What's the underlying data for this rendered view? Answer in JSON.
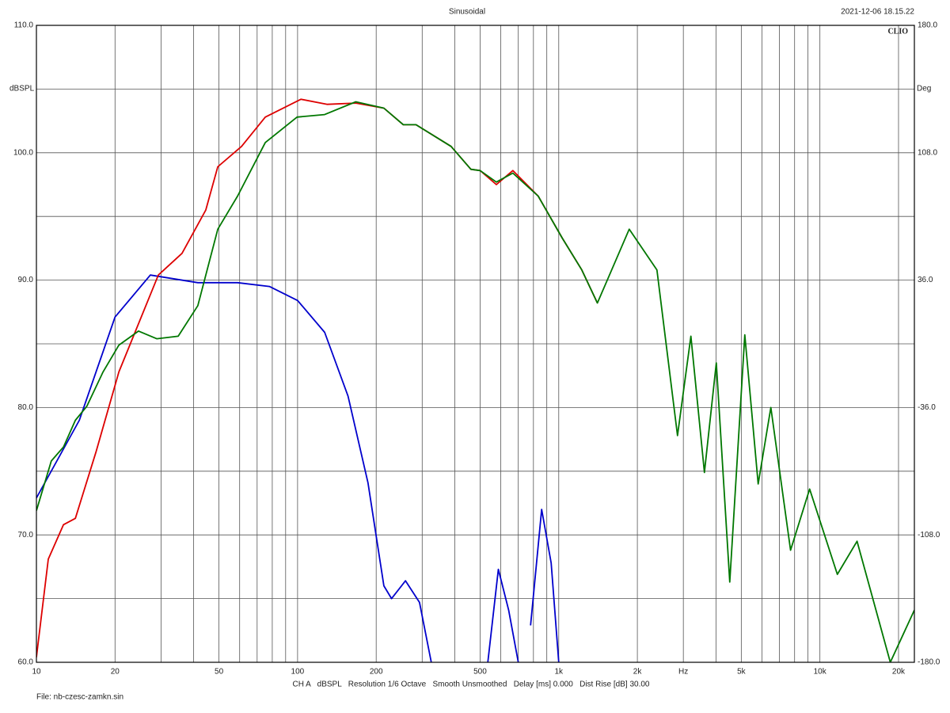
{
  "chart_data": {
    "type": "line",
    "title": "Sinusoidal",
    "timestamp": "2021-12-06 18.15.22",
    "brand": "CLIO",
    "y_label": "dBSPL",
    "y2_label": "Deg",
    "footer": "CH A   dBSPL   Resolution 1/6 Octave   Smooth Unsmoothed   Delay [ms] 0.000   Dist Rise [dB] 30.00",
    "file": "File: nb-czesc-zamkn.sin",
    "xscale": "log",
    "xlim": [
      10,
      23000
    ],
    "ylim": [
      60,
      110
    ],
    "y2lim": [
      -180,
      180
    ],
    "grid": true,
    "xticks": [
      10,
      20,
      50,
      100,
      200,
      500,
      {
        "value": 1000,
        "label": "1k"
      },
      {
        "value": 2000,
        "label": "2k"
      },
      {
        "value": 3000,
        "label": "Hz"
      },
      {
        "value": 5000,
        "label": "5k"
      },
      {
        "value": 10000,
        "label": "10k"
      },
      {
        "value": 20000,
        "label": "20k"
      }
    ],
    "xgrid": [
      10,
      20,
      30,
      40,
      50,
      60,
      70,
      80,
      90,
      100,
      200,
      300,
      400,
      500,
      600,
      700,
      800,
      900,
      1000,
      2000,
      3000,
      4000,
      5000,
      6000,
      7000,
      8000,
      9000,
      10000,
      20000
    ],
    "yticks": [
      {
        "value": 60,
        "label": "60.0"
      },
      {
        "value": 70,
        "label": "70.0"
      },
      {
        "value": 80,
        "label": "80.0"
      },
      {
        "value": 90,
        "label": "90.0"
      },
      {
        "value": 100,
        "label": "100.0"
      },
      {
        "value": 110,
        "label": "110.0"
      }
    ],
    "ygrid": [
      65,
      75,
      85,
      95,
      105
    ],
    "y2ticks": [
      {
        "value": 180,
        "label": "180.0"
      },
      {
        "value": 108,
        "label": "108.0"
      },
      {
        "value": 36,
        "label": "36.0"
      },
      {
        "value": -36,
        "label": "-36.0"
      },
      {
        "value": -108,
        "label": "-108.0"
      },
      {
        "value": -180,
        "label": "-180.0"
      }
    ],
    "series": [
      {
        "color": "#0000cc",
        "x": [
          10,
          14.6,
          20,
          27.3,
          41.5,
          58.9,
          78,
          100,
          127,
          156,
          186,
          214,
          229,
          259,
          293,
          325,
          450,
          535,
          587,
          643,
          700,
          740,
          780,
          860,
          935,
          1000
        ],
        "values": [
          72.9,
          79,
          87.1,
          90.4,
          89.8,
          89.8,
          89.5,
          88.4,
          85.9,
          80.9,
          74.1,
          66,
          65,
          66.4,
          64.7,
          60,
          null,
          60,
          67.3,
          64.1,
          60,
          null,
          62.9,
          72,
          67.8,
          60
        ]
      },
      {
        "color": "#dd0000",
        "x": [
          10,
          11.1,
          12.7,
          14.1,
          16.9,
          20.7,
          29.3,
          36.1,
          44.5,
          49.5,
          61,
          75.2,
          103,
          130,
          167,
          214,
          254,
          284,
          387,
          461,
          500,
          577,
          667,
          834,
          1031,
          1225,
          1406
        ],
        "values": [
          60.4,
          68.1,
          70.8,
          71.3,
          76.5,
          82.8,
          90.4,
          92.1,
          95.5,
          98.9,
          100.5,
          102.8,
          104.2,
          103.8,
          103.9,
          103.5,
          102.2,
          102.2,
          100.5,
          98.7,
          98.6,
          97.5,
          98.6,
          96.6,
          93.3,
          90.8,
          88.2
        ]
      },
      {
        "color": "#007700",
        "x": [
          10,
          11.4,
          12.7,
          14.1,
          15.6,
          18,
          20.7,
          24.6,
          28.9,
          34.9,
          41.5,
          49.5,
          58.9,
          75.2,
          99.5,
          127,
          167,
          214,
          254,
          284,
          387,
          461,
          500,
          577,
          667,
          834,
          1031,
          1225,
          1406,
          1862,
          2377,
          2850,
          3206,
          3612,
          4011,
          4518,
          5157,
          5803,
          6490,
          7722,
          9137,
          11660,
          13880,
          18600,
          23000
        ],
        "values": [
          71.9,
          75.8,
          76.9,
          79,
          80.1,
          82.8,
          84.9,
          86,
          85.4,
          85.6,
          88,
          94,
          96.6,
          100.8,
          102.8,
          103,
          104,
          103.5,
          102.2,
          102.2,
          100.5,
          98.7,
          98.6,
          97.7,
          98.4,
          96.6,
          93.3,
          90.8,
          88.2,
          94,
          90.8,
          77.8,
          85.6,
          74.9,
          83.5,
          66.3,
          85.7,
          74,
          80,
          68.8,
          73.6,
          66.9,
          69.5,
          60,
          64.1
        ]
      }
    ]
  }
}
